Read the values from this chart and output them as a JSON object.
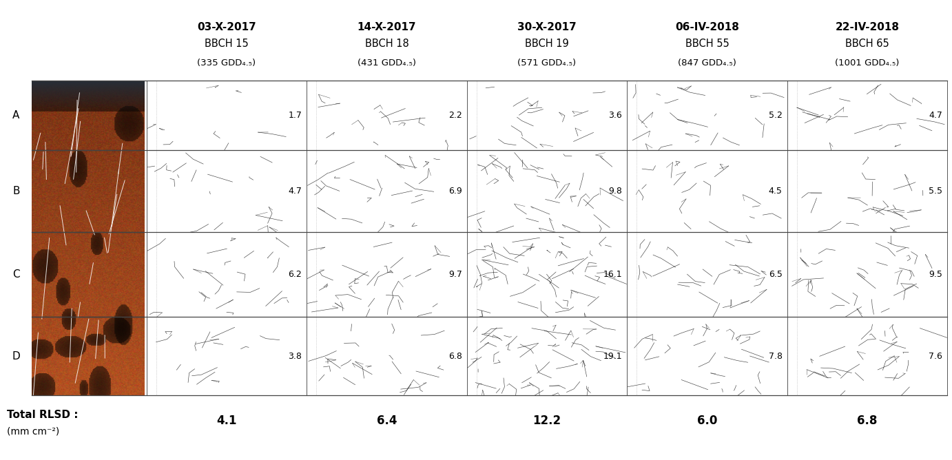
{
  "columns": [
    {
      "date": "03-X-2017",
      "bbch": "BBCH 15",
      "gdd": "(335 GDD₄.₅)",
      "values": {
        "A": "1.7",
        "B": "4.7",
        "C": "6.2",
        "D": "3.8"
      },
      "total": "4.1"
    },
    {
      "date": "14-X-2017",
      "bbch": "BBCH 18",
      "gdd": "(431 GDD₄.₅)",
      "values": {
        "A": "2.2",
        "B": "6.9",
        "C": "9.7",
        "D": "6.8"
      },
      "total": "6.4"
    },
    {
      "date": "30-X-2017",
      "bbch": "BBCH 19",
      "gdd": "(571 GDD₄.₅)",
      "values": {
        "A": "3.6",
        "B": "9.8",
        "C": "16.1",
        "D": "19.1"
      },
      "total": "12.2"
    },
    {
      "date": "06-IV-2018",
      "bbch": "BBCH 55",
      "gdd": "(847 GDD₄.₅)",
      "values": {
        "A": "5.2",
        "B": "4.5",
        "C": "6.5",
        "D": "7.8"
      },
      "total": "6.0"
    },
    {
      "date": "22-IV-2018",
      "bbch": "BBCH 65",
      "gdd": "(1001 GDD₄.₅)",
      "values": {
        "A": "4.7",
        "B": "5.5",
        "C": "9.5",
        "D": "7.6"
      },
      "total": "6.8"
    }
  ],
  "section_labels": [
    "A",
    "B",
    "C",
    "D"
  ],
  "section_proportions": [
    0.22,
    0.26,
    0.27,
    0.25
  ],
  "total_label_line1": "Total RLSD :",
  "total_label_line2": "(mm cm⁻²)",
  "background_color": "#ffffff",
  "title_fontsize": 11,
  "value_fontsize": 9,
  "label_fontsize": 11,
  "total_fontsize": 12
}
